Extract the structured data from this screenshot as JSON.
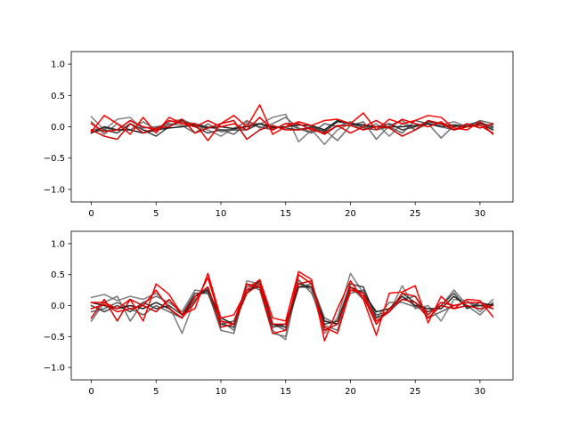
{
  "chart_data": [
    {
      "type": "line",
      "title": "",
      "xlabel": "",
      "ylabel": "",
      "xlim": [
        -1.55,
        32.55
      ],
      "ylim": [
        -1.2,
        1.2
      ],
      "xticks": [
        0,
        5,
        10,
        15,
        20,
        25,
        30
      ],
      "yticks": [
        1.0,
        0.5,
        0.0,
        -0.5,
        -1.0
      ],
      "grid": false,
      "x": [
        0,
        1,
        2,
        3,
        4,
        5,
        6,
        7,
        8,
        9,
        10,
        11,
        12,
        13,
        14,
        15,
        16,
        17,
        18,
        19,
        20,
        21,
        22,
        23,
        24,
        25,
        26,
        27,
        28,
        29,
        30,
        31
      ],
      "series": [
        {
          "color": "#808080",
          "values": [
            0.16,
            -0.05,
            0.12,
            0.15,
            -0.05,
            -0.08,
            0.08,
            0.12,
            0.02,
            -0.05,
            -0.15,
            -0.02,
            0.08,
            0.04,
            0.15,
            0.2,
            -0.24,
            -0.05,
            -0.28,
            -0.05,
            0.05,
            -0.05,
            0.05,
            -0.15,
            0.05,
            -0.05,
            0.05,
            0.03,
            0.08,
            0.0,
            0.05,
            0.0
          ]
        },
        {
          "color": "#707070",
          "values": [
            0.08,
            -0.12,
            0.05,
            -0.05,
            0.08,
            -0.05,
            0.05,
            0.02,
            -0.1,
            0.05,
            -0.08,
            -0.05,
            0.1,
            -0.02,
            0.05,
            0.15,
            -0.02,
            -0.08,
            -0.05,
            -0.22,
            0.02,
            0.08,
            -0.2,
            0.02,
            0.1,
            -0.05,
            0.05,
            -0.18,
            0.02,
            0.0,
            0.1,
            0.05
          ]
        },
        {
          "color": "#606060",
          "values": [
            -0.05,
            -0.02,
            -0.05,
            0.1,
            -0.02,
            0.0,
            0.03,
            0.08,
            0.05,
            0.0,
            -0.05,
            -0.12,
            0.05,
            0.0,
            -0.05,
            0.05,
            -0.03,
            -0.1,
            0.05,
            0.0,
            0.08,
            -0.02,
            -0.05,
            0.0,
            -0.1,
            0.1,
            0.05,
            0.0,
            -0.05,
            0.0,
            0.05,
            0.02
          ]
        },
        {
          "color": "#404040",
          "values": [
            -0.08,
            -0.05,
            -0.1,
            0.05,
            -0.05,
            -0.15,
            0.0,
            0.1,
            0.0,
            -0.1,
            -0.05,
            -0.05,
            -0.05,
            0.05,
            0.0,
            -0.02,
            -0.05,
            0.0,
            -0.08,
            0.08,
            0.05,
            0.0,
            0.0,
            0.05,
            -0.05,
            0.0,
            0.08,
            0.05,
            0.0,
            0.03,
            0.08,
            -0.02
          ]
        },
        {
          "color": "#202020",
          "values": [
            -0.1,
            0.0,
            -0.05,
            -0.05,
            -0.1,
            -0.05,
            -0.02,
            0.0,
            0.03,
            -0.02,
            0.0,
            -0.03,
            0.0,
            0.05,
            -0.02,
            0.0,
            0.03,
            0.02,
            -0.05,
            0.1,
            0.05,
            0.03,
            0.0,
            0.0,
            0.0,
            0.02,
            0.05,
            0.0,
            0.03,
            0.0,
            0.05,
            -0.05
          ]
        },
        {
          "color": "#ff0000",
          "values": [
            -0.08,
            0.18,
            0.05,
            -0.12,
            0.15,
            -0.1,
            0.15,
            0.05,
            0.05,
            -0.22,
            0.05,
            0.18,
            0.0,
            0.35,
            -0.12,
            0.0,
            0.08,
            0.02,
            0.1,
            0.12,
            0.05,
            0.22,
            -0.05,
            0.12,
            0.05,
            0.1,
            0.18,
            0.15,
            -0.02,
            -0.05,
            0.08,
            -0.12
          ]
        },
        {
          "color": "#e80000",
          "values": [
            0.05,
            -0.08,
            -0.05,
            0.1,
            0.0,
            -0.05,
            0.1,
            0.05,
            0.0,
            0.1,
            0.0,
            0.05,
            -0.05,
            0.15,
            -0.05,
            0.05,
            0.05,
            -0.05,
            -0.1,
            0.02,
            -0.1,
            0.0,
            0.1,
            -0.02,
            0.12,
            0.05,
            0.0,
            0.08,
            -0.05,
            0.05,
            -0.02,
            0.05
          ]
        },
        {
          "color": "#d00000",
          "values": [
            -0.05,
            -0.15,
            -0.2,
            0.05,
            -0.1,
            -0.02,
            0.0,
            0.12,
            -0.1,
            -0.02,
            0.05,
            0.1,
            -0.2,
            -0.05,
            0.02,
            -0.05,
            -0.05,
            -0.02,
            -0.12,
            0.02,
            0.02,
            -0.05,
            0.0,
            -0.02,
            -0.15,
            -0.05,
            0.1,
            0.05,
            -0.05,
            0.0,
            0.02,
            -0.1
          ]
        }
      ]
    },
    {
      "type": "line",
      "title": "",
      "xlabel": "",
      "ylabel": "",
      "xlim": [
        -1.55,
        32.55
      ],
      "ylim": [
        -1.2,
        1.2
      ],
      "xticks": [
        0,
        5,
        10,
        15,
        20,
        25,
        30
      ],
      "yticks": [
        1.0,
        0.5,
        0.0,
        -0.5,
        -1.0
      ],
      "grid": false,
      "x": [
        0,
        1,
        2,
        3,
        4,
        5,
        6,
        7,
        8,
        9,
        10,
        11,
        12,
        13,
        14,
        15,
        16,
        17,
        18,
        19,
        20,
        21,
        22,
        23,
        24,
        25,
        26,
        27,
        28,
        29,
        30,
        31
      ],
      "series": [
        {
          "color": "#808080",
          "values": [
            0.13,
            0.18,
            0.08,
            0.15,
            0.1,
            0.2,
            0.0,
            -0.45,
            0.1,
            0.28,
            -0.25,
            -0.4,
            0.4,
            0.35,
            -0.4,
            -0.55,
            0.4,
            0.25,
            -0.45,
            -0.2,
            0.52,
            0.2,
            -0.2,
            -0.1,
            0.32,
            -0.05,
            0.0,
            -0.25,
            0.1,
            0.08,
            -0.1,
            0.1
          ]
        },
        {
          "color": "#707070",
          "values": [
            -0.25,
            0.05,
            0.15,
            -0.25,
            0.05,
            0.15,
            0.05,
            -0.1,
            0.25,
            0.22,
            -0.4,
            -0.45,
            0.35,
            0.25,
            -0.45,
            -0.5,
            0.42,
            0.2,
            -0.32,
            -0.4,
            0.3,
            0.1,
            -0.2,
            0.05,
            0.05,
            -0.02,
            -0.1,
            0.0,
            0.25,
            0.0,
            -0.15,
            0.05
          ]
        },
        {
          "color": "#606060",
          "values": [
            -0.1,
            -0.05,
            0.05,
            -0.05,
            -0.15,
            0.0,
            -0.1,
            -0.2,
            0.1,
            0.3,
            -0.3,
            -0.25,
            0.3,
            0.4,
            -0.3,
            -0.4,
            0.3,
            0.35,
            -0.2,
            -0.3,
            0.2,
            0.25,
            -0.15,
            -0.1,
            0.1,
            0.15,
            -0.2,
            -0.1,
            0.0,
            0.05,
            0.0,
            -0.05
          ]
        },
        {
          "color": "#404040",
          "values": [
            0.0,
            -0.1,
            0.0,
            -0.1,
            0.05,
            -0.05,
            0.0,
            -0.15,
            0.2,
            0.2,
            -0.3,
            -0.35,
            0.25,
            0.3,
            -0.35,
            -0.3,
            0.35,
            0.3,
            -0.3,
            -0.25,
            0.35,
            0.3,
            -0.2,
            -0.1,
            0.2,
            0.05,
            -0.1,
            0.0,
            0.2,
            -0.05,
            0.05,
            0.0
          ]
        },
        {
          "color": "#202020",
          "values": [
            0.05,
            0.0,
            -0.05,
            0.0,
            -0.05,
            0.05,
            -0.05,
            -0.2,
            0.15,
            0.25,
            -0.2,
            -0.3,
            0.2,
            0.4,
            -0.3,
            -0.35,
            0.3,
            0.3,
            -0.25,
            -0.3,
            0.3,
            0.2,
            -0.1,
            -0.05,
            0.15,
            0.0,
            -0.05,
            -0.05,
            0.15,
            -0.02,
            0.0,
            0.02
          ]
        },
        {
          "color": "#ff0000",
          "values": [
            0.05,
            0.05,
            -0.05,
            0.1,
            -0.25,
            0.35,
            0.18,
            -0.15,
            -0.05,
            0.52,
            -0.2,
            -0.15,
            0.25,
            0.42,
            -0.2,
            -0.25,
            0.55,
            0.42,
            -0.57,
            -0.05,
            0.4,
            0.1,
            -0.48,
            0.2,
            0.22,
            0.32,
            -0.28,
            0.15,
            -0.05,
            0.1,
            0.08,
            -0.18
          ]
        },
        {
          "color": "#e80000",
          "values": [
            -0.05,
            0.02,
            -0.1,
            -0.05,
            0.0,
            0.25,
            -0.05,
            -0.2,
            0.05,
            0.45,
            -0.25,
            -0.3,
            0.35,
            0.3,
            -0.45,
            -0.4,
            0.5,
            0.35,
            -0.35,
            -0.45,
            0.25,
            0.2,
            -0.25,
            -0.1,
            0.2,
            0.15,
            -0.15,
            0.05,
            0.0,
            0.05,
            0.05,
            -0.05
          ]
        },
        {
          "color": "#d00000",
          "values": [
            -0.2,
            0.1,
            -0.25,
            0.1,
            0.0,
            -0.1,
            0.1,
            -0.15,
            0.15,
            0.3,
            -0.35,
            -0.3,
            0.2,
            0.35,
            -0.3,
            -0.3,
            0.35,
            0.4,
            -0.4,
            -0.3,
            0.3,
            0.15,
            -0.3,
            -0.05,
            0.1,
            0.05,
            -0.2,
            0.0,
            -0.05,
            0.0,
            -0.05,
            0.0
          ]
        }
      ]
    }
  ]
}
